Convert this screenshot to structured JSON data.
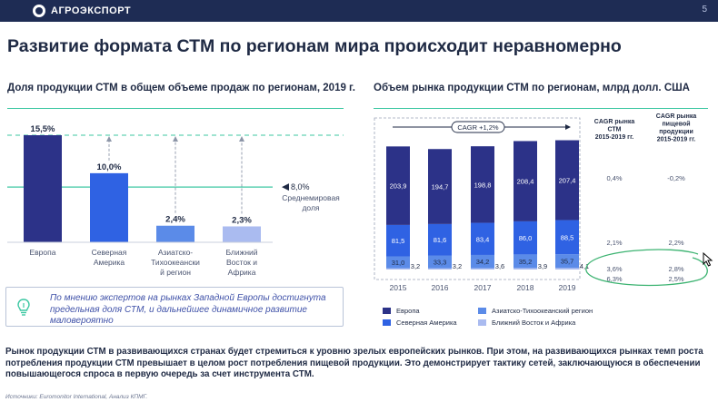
{
  "header": {
    "logo_text": "АГРОЭКСПОРТ",
    "page_number": "5"
  },
  "title": "Развитие формата СТМ по регионам мира происходит неравномерно",
  "left_panel": {
    "subtitle": "Доля продукции СТМ в общем объеме продаж по регионам, 2019 г.",
    "average_label": "8,0%",
    "average_text_line1": "Среднемировая",
    "average_text_line2": "доля"
  },
  "right_panel": {
    "subtitle": "Объем рынка продукции СТМ по регионам, млрд долл. США",
    "cagr_label": "CAGR +1,2%",
    "cagr_header_1": [
      "CAGR рынка",
      "СТМ",
      "2015-2019 гг."
    ],
    "cagr_header_2": [
      "CAGR рынка",
      "пищевой",
      "продукции",
      "2015-2019 гг."
    ],
    "cagr_rows": [
      {
        "stm": "0,4%",
        "food": "-0,2%"
      },
      {
        "stm": "2,1%",
        "food": "2,2%"
      },
      {
        "stm": "3,6%",
        "food": "2,8%"
      },
      {
        "stm": "6,3%",
        "food": "2,5%"
      }
    ],
    "legend": [
      {
        "label": "Европа",
        "color": "#2c3288"
      },
      {
        "label": "Азиатско-Тихоокеанский регион",
        "color": "#5b8be8"
      },
      {
        "label": "Северная Америка",
        "color": "#2f62e3"
      },
      {
        "label": "Ближний Восток и Африка",
        "color": "#aabbf0"
      }
    ]
  },
  "expert_note": "По мнению экспертов на рынках Западной Европы достигнута предельная доля СТМ, и дальнейшее динамичное развитие маловероятно",
  "bottom_text": "Рынок продукции СТМ в развивающихся странах будет стремиться к уровню зрелых европейских рынков. При этом, на развивающихся рынках темп роста потребления продукции СТМ превышает в целом рост потребления пищевой продукции. Это демонстрирует тактику сетей, заключающуюся в обеспечении повышающегося спроса в первую очередь за счет инструмента СТМ.",
  "source": "Источники: Euromonitor International, Анализ КПМГ.",
  "chart_data": [
    {
      "type": "bar",
      "title": "Доля продукции СТМ в общем объеме продаж по регионам, 2019 г.",
      "categories": [
        "Европа",
        "Северная Америка",
        "Азиатско-Тихоокеанский регион",
        "Ближний Восток и Африка"
      ],
      "category_lines": [
        [
          "Европа"
        ],
        [
          "Северная",
          "Америка"
        ],
        [
          "Азиатско-",
          "Тихоокеански",
          "й регион"
        ],
        [
          "Ближний",
          "Восток и",
          "Африка"
        ]
      ],
      "values": [
        15.5,
        10.0,
        2.4,
        2.3
      ],
      "value_labels": [
        "15,5%",
        "10,0%",
        "2,4%",
        "2,3%"
      ],
      "colors": [
        "#2c3288",
        "#2f62e3",
        "#5b8be8",
        "#aabbf0"
      ],
      "average": 8.0,
      "ylim": [
        0,
        18
      ]
    },
    {
      "type": "bar",
      "stacked": true,
      "title": "Объем рынка продукции СТМ по регионам, млрд долл. США",
      "categories": [
        "2015",
        "2016",
        "2017",
        "2018",
        "2019"
      ],
      "series": [
        {
          "name": "Ближний Восток и Африка",
          "values": [
            3.2,
            3.2,
            3.6,
            3.9,
            4.1
          ],
          "labels": [
            "3,2",
            "3,2",
            "3,6",
            "3,9",
            "4,1"
          ],
          "color": "#aabbf0"
        },
        {
          "name": "Азиатско-Тихоокеанский регион",
          "values": [
            31.0,
            33.3,
            34.2,
            35.2,
            35.7
          ],
          "labels": [
            "31,0",
            "33,3",
            "34,2",
            "35,2",
            "35,7"
          ],
          "color": "#5b8be8"
        },
        {
          "name": "Северная Америка",
          "values": [
            81.5,
            81.6,
            83.4,
            86.0,
            88.5
          ],
          "labels": [
            "81,5",
            "81,6",
            "83,4",
            "86,0",
            "88,5"
          ],
          "color": "#2f62e3"
        },
        {
          "name": "Европа",
          "values": [
            203.9,
            194.7,
            198.8,
            208.4,
            207.4
          ],
          "labels": [
            "203,9",
            "194,7",
            "198,8",
            "208,4",
            "207,4"
          ],
          "color": "#2c3288"
        }
      ],
      "ylim": [
        0,
        360
      ]
    }
  ]
}
